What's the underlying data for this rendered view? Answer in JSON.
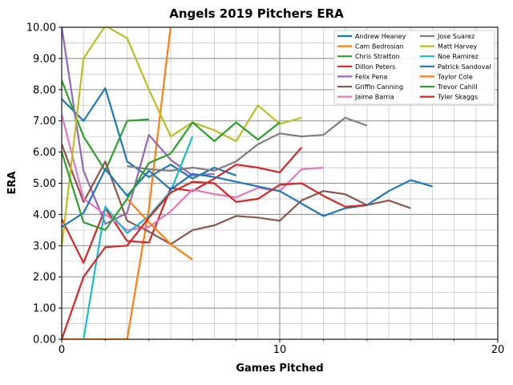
{
  "chart_data": {
    "type": "line",
    "title": "Angels 2019 Pitchers ERA",
    "xlabel": "Games Pitched",
    "ylabel": "ERA",
    "xlim": [
      0,
      20
    ],
    "ylim": [
      0,
      10
    ],
    "xticks": [
      "0",
      "10",
      "20"
    ],
    "yticks": [
      "0.00",
      "1.00",
      "2.00",
      "3.00",
      "4.00",
      "5.00",
      "6.00",
      "7.00",
      "8.00",
      "9.00",
      "10.00"
    ],
    "grid": true,
    "legend_position": "top-right",
    "series": [
      {
        "name": "Andrew Heaney",
        "color": "#1f77b4",
        "x": [
          0,
          1,
          2,
          3,
          4,
          5,
          6,
          7,
          8
        ],
        "y": [
          7.7,
          7.0,
          8.05,
          5.7,
          5.2,
          5.6,
          5.15,
          5.5,
          5.25
        ]
      },
      {
        "name": "Cam Bedrosian",
        "color": "#ff7f0e",
        "x": [
          0,
          1,
          2,
          3,
          4,
          5,
          6
        ],
        "y": [
          0.0,
          0.0,
          0.0,
          0.0,
          4.2,
          10.05,
          10.3
        ]
      },
      {
        "name": "Chris Stratton",
        "color": "#2ca02c",
        "x": [
          0,
          1,
          2,
          3,
          4
        ],
        "y": [
          8.3,
          6.5,
          5.4,
          7.0,
          7.05
        ]
      },
      {
        "name": "Dillon Peters",
        "color": "#d62728",
        "x": [
          0,
          1,
          2,
          3,
          4,
          5,
          6,
          7,
          8,
          9,
          10,
          11
        ],
        "y": [
          3.85,
          2.45,
          4.2,
          3.15,
          3.1,
          4.85,
          4.75,
          5.15,
          5.6,
          5.5,
          5.35,
          6.15
        ]
      },
      {
        "name": "Felix Pena",
        "color": "#9467bd",
        "x": [
          0,
          1,
          2,
          3,
          4,
          5,
          6,
          7
        ],
        "y": [
          10.0,
          5.4,
          3.7,
          4.05,
          6.55,
          5.75,
          5.25,
          5.3
        ]
      },
      {
        "name": "Griffin Canning",
        "color": "#8c564b",
        "x": [
          0,
          1,
          2,
          3,
          4,
          5,
          6,
          7,
          8,
          9,
          10,
          11,
          12,
          13,
          14,
          15,
          16
        ],
        "y": [
          6.25,
          4.4,
          5.7,
          3.8,
          3.45,
          3.05,
          3.5,
          3.65,
          3.95,
          3.9,
          3.8,
          4.45,
          4.75,
          4.65,
          4.3,
          4.45,
          4.2
        ]
      },
      {
        "name": "Jaime Barria",
        "color": "#e377c2",
        "x": [
          0,
          1,
          2,
          3,
          4,
          5,
          6,
          7,
          8,
          9,
          10,
          11,
          12
        ],
        "y": [
          7.2,
          4.5,
          4.0,
          3.5,
          3.6,
          4.1,
          4.8,
          4.65,
          4.55,
          4.85,
          4.75,
          5.45,
          5.5
        ]
      },
      {
        "name": "Jose Suarez",
        "color": "#7f7f7f",
        "x": [
          3,
          4,
          5,
          6,
          7,
          8,
          9,
          10,
          11,
          12,
          13,
          14
        ],
        "y": [
          5.55,
          5.45,
          5.4,
          5.5,
          5.4,
          5.7,
          6.25,
          6.6,
          6.5,
          6.55,
          7.1,
          6.85
        ]
      },
      {
        "name": "Matt Harvey",
        "color": "#bcbd22",
        "x": [
          0,
          1,
          2,
          3,
          4,
          5,
          6,
          7,
          8,
          9,
          10,
          11
        ],
        "y": [
          2.95,
          9.0,
          10.05,
          9.65,
          8.0,
          6.5,
          6.95,
          6.7,
          6.35,
          7.5,
          6.9,
          7.1
        ]
      },
      {
        "name": "Noe Ramirez",
        "color": "#17becf",
        "x": [
          1,
          2,
          3,
          4,
          5,
          6
        ],
        "y": [
          0.0,
          4.25,
          3.4,
          3.95,
          4.75,
          6.5
        ]
      },
      {
        "name": "Patrick Sandoval",
        "color": "#1f77b4",
        "x": [
          0,
          1,
          2,
          3,
          4,
          5,
          6,
          7,
          8,
          9,
          10,
          11,
          12,
          13,
          14,
          15,
          16,
          17
        ],
        "y": [
          3.6,
          4.05,
          5.45,
          4.6,
          5.4,
          4.8,
          5.3,
          5.2,
          5.05,
          4.9,
          4.75,
          4.35,
          3.95,
          4.2,
          4.3,
          4.75,
          5.1,
          4.9
        ]
      },
      {
        "name": "Taylor Cole",
        "color": "#ff7f0e",
        "x": [
          3,
          4,
          5,
          6
        ],
        "y": [
          4.5,
          3.75,
          3.05,
          2.55
        ]
      },
      {
        "name": "Trevor Cahill",
        "color": "#2ca02c",
        "x": [
          0,
          1,
          2,
          3,
          4,
          5,
          6,
          7,
          8,
          9,
          10
        ],
        "y": [
          6.0,
          3.75,
          3.5,
          4.5,
          5.65,
          5.95,
          6.95,
          6.35,
          6.95,
          6.4,
          6.95
        ]
      },
      {
        "name": "Tyler Skaggs",
        "color": "#d62728",
        "x": [
          0,
          1,
          2,
          3,
          4,
          5,
          6,
          7,
          8,
          9,
          10,
          11,
          12,
          13,
          14
        ],
        "y": [
          0.0,
          2.0,
          2.95,
          3.0,
          3.9,
          4.7,
          5.05,
          5.0,
          4.4,
          4.5,
          4.95,
          5.0,
          4.6,
          4.25,
          4.3
        ]
      }
    ]
  }
}
